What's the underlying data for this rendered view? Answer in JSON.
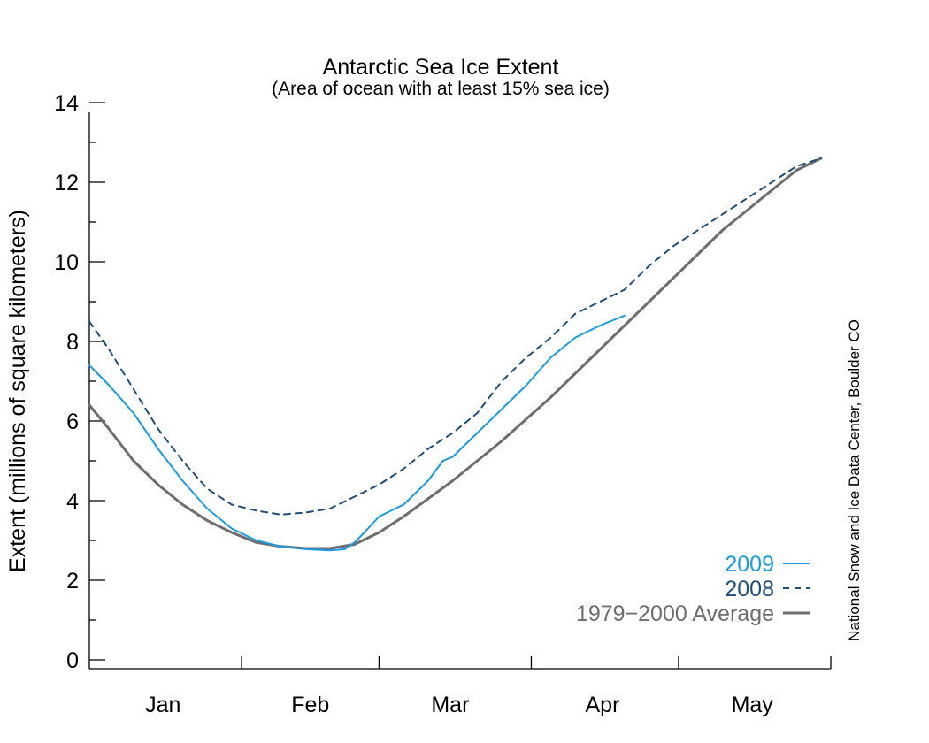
{
  "chart_data": {
    "type": "line",
    "title": "Antarctic Sea Ice Extent",
    "subtitle": "(Area of ocean with at least 15% sea ice)",
    "ylabel": "Extent (millions of square kilometers)",
    "ylim": [
      0,
      14
    ],
    "yticks": [
      "0",
      "2",
      "4",
      "6",
      "8",
      "10",
      "12",
      "14"
    ],
    "xlim": [
      1,
      152
    ],
    "month_labels": [
      {
        "label": "Jan",
        "day": 16
      },
      {
        "label": "Feb",
        "day": 46
      },
      {
        "label": "Mar",
        "day": 74.5
      },
      {
        "label": "Apr",
        "day": 105.5
      },
      {
        "label": "May",
        "day": 136
      }
    ],
    "month_boundaries": [
      32,
      60,
      91,
      121
    ],
    "credit": "National Snow and Ice Data Center, Boulder CO",
    "grid": false,
    "legend_position": "bottom-right",
    "series": [
      {
        "name": "2009",
        "color": "#1a9be0",
        "style": "solid",
        "x": [
          1,
          5,
          10,
          15,
          20,
          25,
          30,
          35,
          40,
          45,
          50,
          53,
          55,
          57,
          60,
          65,
          70,
          73,
          75,
          80,
          85,
          90,
          95,
          100,
          105,
          110
        ],
        "y": [
          7.4,
          6.9,
          6.2,
          5.3,
          4.5,
          3.8,
          3.3,
          3.0,
          2.85,
          2.78,
          2.75,
          2.78,
          2.95,
          3.2,
          3.6,
          3.9,
          4.5,
          5.0,
          5.1,
          5.7,
          6.3,
          6.9,
          7.6,
          8.1,
          8.4,
          8.65
        ]
      },
      {
        "name": "2008",
        "color": "#1f4e79",
        "style": "dashed",
        "x": [
          1,
          5,
          10,
          15,
          20,
          25,
          30,
          35,
          40,
          45,
          50,
          55,
          60,
          65,
          70,
          75,
          80,
          85,
          90,
          95,
          100,
          105,
          110,
          115,
          120,
          125,
          130,
          135,
          140,
          145,
          150
        ],
        "y": [
          8.5,
          7.8,
          6.8,
          5.8,
          5.0,
          4.3,
          3.9,
          3.75,
          3.65,
          3.7,
          3.8,
          4.1,
          4.4,
          4.8,
          5.3,
          5.7,
          6.2,
          7.0,
          7.6,
          8.1,
          8.7,
          9.0,
          9.3,
          9.9,
          10.4,
          10.8,
          11.2,
          11.6,
          12.0,
          12.4,
          12.6
        ]
      },
      {
        "name": "1979−2000 Average",
        "color": "#6e6e6e",
        "style": "solid",
        "x": [
          1,
          5,
          10,
          15,
          20,
          25,
          30,
          35,
          40,
          45,
          50,
          55,
          60,
          65,
          70,
          75,
          80,
          85,
          90,
          95,
          100,
          105,
          110,
          115,
          120,
          125,
          130,
          135,
          140,
          145,
          150
        ],
        "y": [
          6.4,
          5.8,
          5.0,
          4.4,
          3.9,
          3.5,
          3.2,
          2.95,
          2.85,
          2.8,
          2.8,
          2.9,
          3.2,
          3.6,
          4.05,
          4.5,
          5.0,
          5.5,
          6.05,
          6.6,
          7.2,
          7.8,
          8.4,
          9.0,
          9.6,
          10.2,
          10.8,
          11.3,
          11.8,
          12.3,
          12.6
        ]
      }
    ]
  }
}
